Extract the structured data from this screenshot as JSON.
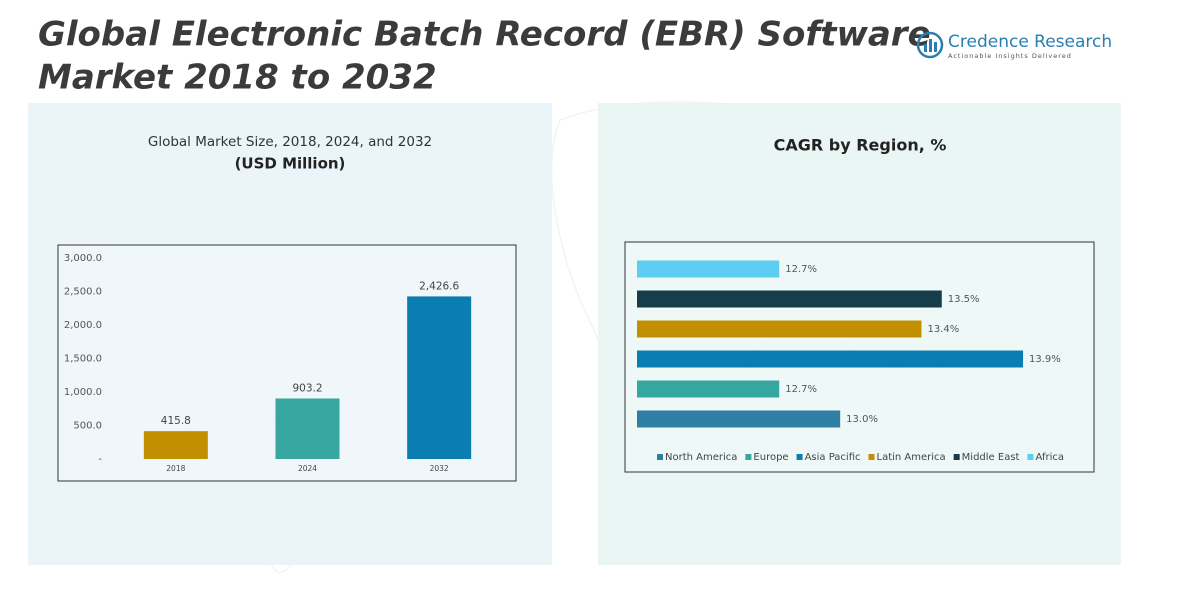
{
  "header": {
    "title_lines": [
      "Global Electronic Batch Record (EBR) Software",
      "Market 2018 to 2032"
    ],
    "logo": "Credence Research",
    "tagline": "Actionable Insights Delivered"
  },
  "chart_data": [
    {
      "type": "bar",
      "orientation": "vertical",
      "title": "Global Market Size, 2018, 2024, and 2032",
      "subtitle": "(USD Million)",
      "categories": [
        "2018",
        "2024",
        "2032"
      ],
      "values": [
        415.8,
        903.2,
        2426.6
      ],
      "value_labels": [
        "415.8",
        "903.2",
        "2,426.6"
      ],
      "colors": [
        "#c18f00",
        "#35a6a0",
        "#0a7eb0"
      ],
      "ylim": [
        0,
        3000
      ],
      "yticks": [
        {
          "value": 0,
          "label": "-"
        },
        {
          "value": 500,
          "label": "500.0"
        },
        {
          "value": 1000,
          "label": "1,000.0"
        },
        {
          "value": 1500,
          "label": "1,500.0"
        },
        {
          "value": 2000,
          "label": "2,000.0"
        },
        {
          "value": 2500,
          "label": "2,500.0"
        },
        {
          "value": 3000,
          "label": "3,000.0"
        }
      ]
    },
    {
      "type": "bar",
      "orientation": "horizontal",
      "title": "CAGR by Region, %",
      "categories": [
        "North America",
        "Europe",
        "Asia Pacific",
        "Latin America",
        "Middle East",
        "Africa"
      ],
      "values": [
        13.0,
        12.7,
        13.9,
        13.4,
        13.5,
        12.7
      ],
      "value_labels": [
        "13.0%",
        "12.7%",
        "13.9%",
        "13.4%",
        "13.5%",
        "12.7%"
      ],
      "colors": [
        "#2e7fa3",
        "#35a6a0",
        "#0a7eb0",
        "#c18f00",
        "#173d4b",
        "#5dcdf2"
      ],
      "xlim": [
        12,
        14.2
      ],
      "legend": "bottom"
    }
  ]
}
